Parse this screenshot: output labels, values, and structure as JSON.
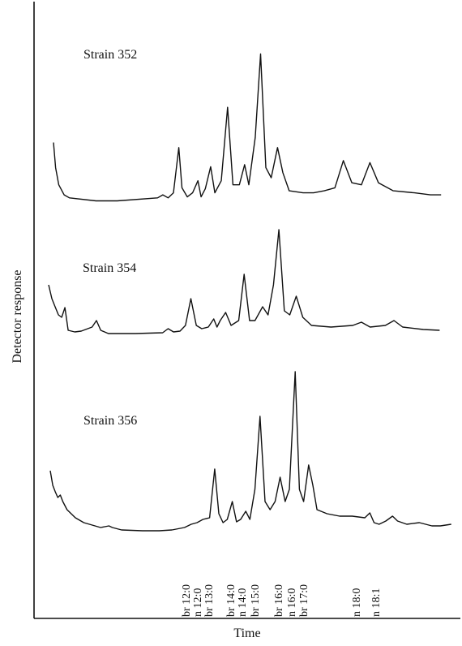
{
  "chart_data": {
    "type": "line",
    "xlabel": "Time",
    "ylabel": "Detector response",
    "series": [
      {
        "name": "Strain 352",
        "points": [
          [
            0,
            60
          ],
          [
            2,
            35
          ],
          [
            5,
            18
          ],
          [
            10,
            8
          ],
          [
            15,
            5
          ],
          [
            40,
            2
          ],
          [
            60,
            2
          ],
          [
            98,
            5
          ],
          [
            103,
            8
          ],
          [
            108,
            5
          ],
          [
            113,
            10
          ],
          [
            118,
            55
          ],
          [
            121,
            15
          ],
          [
            126,
            6
          ],
          [
            131,
            10
          ],
          [
            136,
            22
          ],
          [
            139,
            6
          ],
          [
            143,
            14
          ],
          [
            148,
            36
          ],
          [
            152,
            10
          ],
          [
            158,
            22
          ],
          [
            164,
            95
          ],
          [
            169,
            18
          ],
          [
            175,
            18
          ],
          [
            180,
            38
          ],
          [
            184,
            18
          ],
          [
            190,
            65
          ],
          [
            195,
            148
          ],
          [
            200,
            35
          ],
          [
            205,
            25
          ],
          [
            211,
            55
          ],
          [
            216,
            30
          ],
          [
            222,
            12
          ],
          [
            235,
            10
          ],
          [
            245,
            10
          ],
          [
            255,
            12
          ],
          [
            265,
            15
          ],
          [
            273,
            42
          ],
          [
            281,
            20
          ],
          [
            290,
            18
          ],
          [
            298,
            40
          ],
          [
            306,
            20
          ],
          [
            320,
            12
          ],
          [
            340,
            10
          ],
          [
            355,
            8
          ],
          [
            365,
            8
          ]
        ]
      },
      {
        "name": "Strain 354",
        "points": [
          [
            0,
            62
          ],
          [
            3,
            45
          ],
          [
            6,
            35
          ],
          [
            9,
            25
          ],
          [
            12,
            22
          ],
          [
            15,
            34
          ],
          [
            18,
            6
          ],
          [
            24,
            4
          ],
          [
            30,
            5
          ],
          [
            40,
            10
          ],
          [
            44,
            18
          ],
          [
            48,
            6
          ],
          [
            55,
            2
          ],
          [
            80,
            2
          ],
          [
            105,
            3
          ],
          [
            110,
            8
          ],
          [
            115,
            4
          ],
          [
            121,
            5
          ],
          [
            126,
            12
          ],
          [
            131,
            45
          ],
          [
            136,
            12
          ],
          [
            141,
            8
          ],
          [
            147,
            10
          ],
          [
            152,
            20
          ],
          [
            155,
            10
          ],
          [
            158,
            18
          ],
          [
            163,
            28
          ],
          [
            168,
            12
          ],
          [
            175,
            18
          ],
          [
            180,
            75
          ],
          [
            185,
            18
          ],
          [
            190,
            18
          ],
          [
            197,
            35
          ],
          [
            202,
            25
          ],
          [
            207,
            62
          ],
          [
            212,
            130
          ],
          [
            217,
            30
          ],
          [
            222,
            25
          ],
          [
            228,
            48
          ],
          [
            234,
            22
          ],
          [
            242,
            12
          ],
          [
            260,
            10
          ],
          [
            280,
            12
          ],
          [
            288,
            16
          ],
          [
            296,
            10
          ],
          [
            310,
            12
          ],
          [
            318,
            18
          ],
          [
            326,
            10
          ],
          [
            345,
            7
          ],
          [
            360,
            6
          ]
        ]
      },
      {
        "name": "Strain 356",
        "points": [
          [
            0,
            78
          ],
          [
            3,
            60
          ],
          [
            6,
            52
          ],
          [
            9,
            45
          ],
          [
            12,
            48
          ],
          [
            15,
            40
          ],
          [
            20,
            30
          ],
          [
            30,
            20
          ],
          [
            40,
            14
          ],
          [
            60,
            8
          ],
          [
            70,
            10
          ],
          [
            74,
            8
          ],
          [
            85,
            5
          ],
          [
            110,
            4
          ],
          [
            130,
            4
          ],
          [
            145,
            5
          ],
          [
            160,
            8
          ],
          [
            168,
            12
          ],
          [
            175,
            14
          ],
          [
            182,
            18
          ],
          [
            190,
            20
          ],
          [
            196,
            80
          ],
          [
            201,
            25
          ],
          [
            206,
            14
          ],
          [
            211,
            18
          ],
          [
            217,
            40
          ],
          [
            222,
            15
          ],
          [
            227,
            18
          ],
          [
            233,
            28
          ],
          [
            238,
            18
          ],
          [
            244,
            55
          ],
          [
            250,
            145
          ],
          [
            256,
            40
          ],
          [
            262,
            30
          ],
          [
            268,
            40
          ],
          [
            274,
            70
          ],
          [
            280,
            40
          ],
          [
            285,
            55
          ],
          [
            292,
            200
          ],
          [
            297,
            55
          ],
          [
            302,
            40
          ],
          [
            308,
            85
          ],
          [
            313,
            60
          ],
          [
            318,
            30
          ],
          [
            330,
            25
          ],
          [
            345,
            22
          ],
          [
            360,
            22
          ],
          [
            375,
            20
          ],
          [
            381,
            26
          ],
          [
            386,
            14
          ],
          [
            392,
            12
          ],
          [
            400,
            16
          ],
          [
            408,
            22
          ],
          [
            414,
            16
          ],
          [
            425,
            12
          ],
          [
            440,
            14
          ],
          [
            455,
            10
          ],
          [
            465,
            10
          ],
          [
            478,
            12
          ]
        ]
      }
    ],
    "peak_labels": [
      "br 12:0",
      "n 12:0",
      "br 13:0",
      "br 14:0",
      "n 14:0",
      "br 15:0",
      "br 16:0",
      "n 16:0",
      "br 17:0",
      "n 18:0",
      "n 18:1"
    ]
  }
}
